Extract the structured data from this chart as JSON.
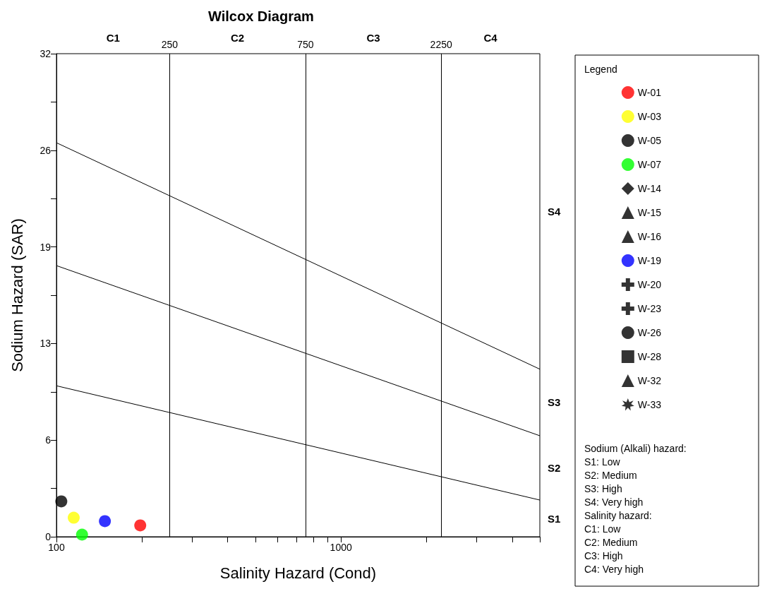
{
  "chart_data": {
    "type": "scatter",
    "title": "Wilcox Diagram",
    "xlabel": "Salinity Hazard (Cond)",
    "ylabel": "Sodium Hazard (SAR)",
    "legend_title": "Legend",
    "legend": "right",
    "log": "x",
    "grid": false,
    "xlim": [
      100,
      5000
    ],
    "xticks": [
      100,
      {
        "value": 200,
        "label": null
      },
      {
        "value": 300,
        "label": null
      },
      {
        "value": 400,
        "label": null
      },
      {
        "value": 500,
        "label": null
      },
      {
        "value": 600,
        "label": null
      },
      {
        "value": 700,
        "label": null
      },
      {
        "value": 800,
        "label": null
      },
      {
        "value": 900,
        "label": null
      },
      1000,
      {
        "value": 2000,
        "label": null
      },
      {
        "value": 3000,
        "label": null
      },
      {
        "value": 4000,
        "label": null
      },
      {
        "value": 5000,
        "label": null
      }
    ],
    "ylim": [
      0,
      32
    ],
    "yticks": [
      0,
      {
        "value": 3.2,
        "label": null
      },
      {
        "value": 6.4,
        "label": "6"
      },
      {
        "value": 9.6,
        "label": null
      },
      {
        "value": 12.8,
        "label": "13"
      },
      {
        "value": 16,
        "label": null
      },
      {
        "value": 19.2,
        "label": "19"
      },
      {
        "value": 22.4,
        "label": null
      },
      {
        "value": 25.6,
        "label": "26"
      },
      {
        "value": 28.8,
        "label": null
      },
      32
    ],
    "series": [
      {
        "name": "W-01",
        "color": "#ff0000",
        "marker": "circle",
        "x": [
          197
        ],
        "values": [
          0.75
        ]
      },
      {
        "name": "W-03",
        "color": "#ffff00",
        "marker": "circle",
        "x": [
          115
        ],
        "values": [
          1.26
        ]
      },
      {
        "name": "W-05",
        "color": "#000000",
        "marker": "circle",
        "x": [
          104
        ],
        "values": [
          2.34
        ]
      },
      {
        "name": "W-07",
        "color": "#00ff00",
        "marker": "circle",
        "x": [
          123
        ],
        "values": [
          0.14
        ]
      },
      {
        "name": "W-14",
        "color": "#000000",
        "marker": "diamond"
      },
      {
        "name": "W-15",
        "color": "#000000",
        "marker": "triangle"
      },
      {
        "name": "W-16",
        "color": "#000000",
        "marker": "triangle"
      },
      {
        "name": "W-19",
        "color": "#0000ff",
        "marker": "circle",
        "x": [
          148
        ],
        "values": [
          1.03
        ]
      },
      {
        "name": "W-20",
        "color": "#000000",
        "marker": "cross"
      },
      {
        "name": "W-23",
        "color": "#000000",
        "marker": "cross"
      },
      {
        "name": "W-26",
        "color": "#000000",
        "marker": "circle"
      },
      {
        "name": "W-28",
        "color": "#000000",
        "marker": "square"
      },
      {
        "name": "W-32",
        "color": "#000000",
        "marker": "triangle"
      },
      {
        "name": "W-33",
        "color": "#000000",
        "marker": "star"
      },
      {
        "type": "line",
        "color": "#000000",
        "marker": "none",
        "x": [
          100,
          5000
        ],
        "values": [
          26.1,
          11.1
        ]
      },
      {
        "type": "line",
        "color": "#000000",
        "marker": "none",
        "x": [
          100,
          5000
        ],
        "values": [
          17.96,
          6.69
        ]
      },
      {
        "type": "line",
        "color": "#000000",
        "marker": "none",
        "x": [
          100,
          5000
        ],
        "values": [
          10.0,
          2.43
        ]
      }
    ],
    "ref_lines": [
      {
        "axis": "x",
        "value": 250,
        "label": "250",
        "color": "#000000"
      },
      {
        "axis": "x",
        "value": 750,
        "label": "750",
        "color": "#000000"
      },
      {
        "axis": "x",
        "value": 2250,
        "label": "2250",
        "color": "#000000"
      }
    ],
    "annotations": [
      "C1",
      "C2",
      "C3",
      "C4",
      "S4",
      "S3",
      "S2",
      "S1",
      "Sodium (Alkali) hazard:",
      "S1: Low",
      "S2: Medium",
      "S3: High",
      "S4: Very high",
      "Salinity hazard:",
      "C1: Low",
      "C2: Medium",
      "C3: High",
      "C4: Very high"
    ]
  }
}
